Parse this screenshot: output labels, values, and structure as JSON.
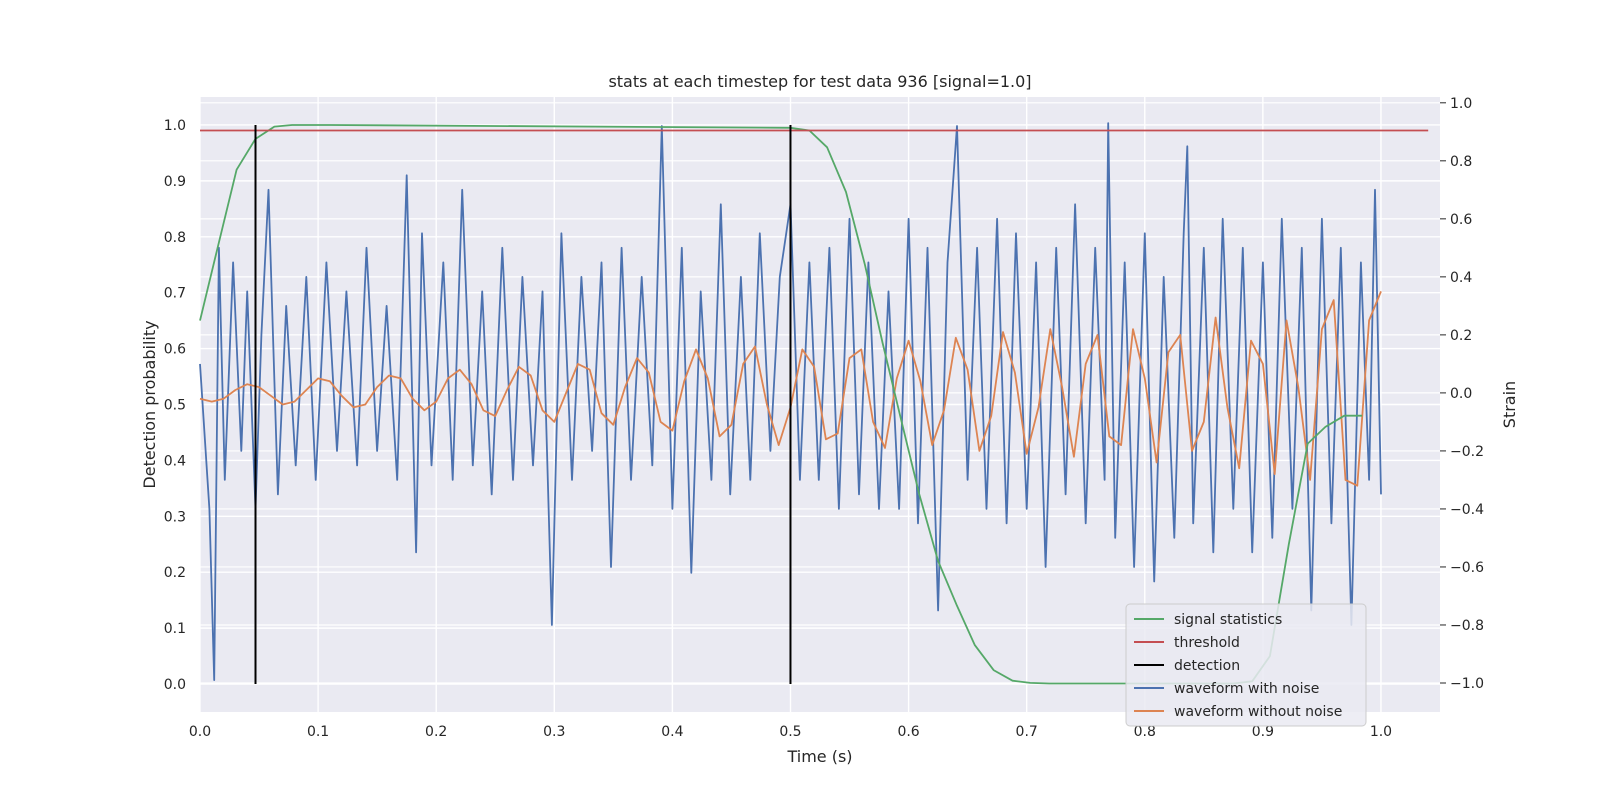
{
  "chart_data": {
    "type": "line",
    "title": "stats at each timestep for test data 936 [signal=1.0]",
    "xlabel": "Time (s)",
    "ylabel": "Detection probability",
    "ylabel_right": "Strain",
    "xlim": [
      0.0,
      1.05
    ],
    "ylim": [
      -0.05,
      1.05
    ],
    "ylim_right": [
      -1.1,
      1.02
    ],
    "xticks": [
      "0.0",
      "0.1",
      "0.2",
      "0.3",
      "0.4",
      "0.5",
      "0.6",
      "0.7",
      "0.8",
      "0.9",
      "1.0"
    ],
    "yticks": [
      "0.0",
      "0.1",
      "0.2",
      "0.3",
      "0.4",
      "0.5",
      "0.6",
      "0.7",
      "0.8",
      "0.9",
      "1.0"
    ],
    "yticks_right": [
      "−1.0",
      "−0.8",
      "−0.6",
      "−0.4",
      "−0.2",
      "0.0",
      "0.2",
      "0.4",
      "0.6",
      "0.8",
      "1.0"
    ],
    "grid": true,
    "legend_position": "lower right",
    "colors": {
      "signal statistics": "#55a868",
      "threshold": "#c44e52",
      "detection": "#000000",
      "waveform with noise": "#4c72b0",
      "waveform without noise": "#dd8452"
    },
    "series": [
      {
        "name": "signal statistics",
        "axis": "left",
        "x": [
          0.0,
          0.016,
          0.031,
          0.047,
          0.063,
          0.078,
          0.094,
          0.11,
          0.5,
          0.516,
          0.531,
          0.547,
          0.563,
          0.578,
          0.594,
          0.609,
          0.625,
          0.641,
          0.656,
          0.672,
          0.688,
          0.703,
          0.719,
          0.8,
          0.875,
          0.891,
          0.906,
          0.922,
          0.938,
          0.953,
          0.969,
          0.984
        ],
        "y": [
          0.65,
          0.79,
          0.92,
          0.975,
          0.997,
          1.0,
          1.0,
          1.0,
          0.995,
          0.99,
          0.96,
          0.88,
          0.75,
          0.61,
          0.47,
          0.34,
          0.22,
          0.14,
          0.07,
          0.025,
          0.006,
          0.002,
          0.001,
          0.001,
          0.001,
          0.005,
          0.05,
          0.25,
          0.43,
          0.46,
          0.48,
          0.48
        ]
      },
      {
        "name": "threshold",
        "axis": "left",
        "x": [
          0.0,
          1.04
        ],
        "y": [
          0.99,
          0.99
        ]
      },
      {
        "name": "detection",
        "axis": "left",
        "x": [
          0.047,
          0.5
        ],
        "y": [
          1.0,
          1.0
        ]
      },
      {
        "name": "waveform with noise",
        "axis": "right",
        "x": [
          0.0,
          0.008,
          0.012,
          0.016,
          0.021,
          0.028,
          0.035,
          0.04,
          0.047,
          0.052,
          0.058,
          0.066,
          0.073,
          0.081,
          0.09,
          0.098,
          0.107,
          0.116,
          0.124,
          0.133,
          0.141,
          0.15,
          0.158,
          0.167,
          0.175,
          0.183,
          0.188,
          0.196,
          0.206,
          0.214,
          0.222,
          0.231,
          0.239,
          0.247,
          0.256,
          0.265,
          0.273,
          0.282,
          0.29,
          0.298,
          0.306,
          0.315,
          0.323,
          0.332,
          0.34,
          0.348,
          0.357,
          0.365,
          0.374,
          0.383,
          0.391,
          0.4,
          0.408,
          0.416,
          0.424,
          0.433,
          0.441,
          0.449,
          0.458,
          0.466,
          0.474,
          0.483,
          0.491,
          0.5,
          0.508,
          0.516,
          0.524,
          0.533,
          0.541,
          0.55,
          0.558,
          0.566,
          0.575,
          0.583,
          0.592,
          0.6,
          0.608,
          0.616,
          0.625,
          0.633,
          0.641,
          0.65,
          0.658,
          0.666,
          0.675,
          0.683,
          0.691,
          0.7,
          0.708,
          0.716,
          0.725,
          0.733,
          0.741,
          0.75,
          0.758,
          0.766,
          0.769,
          0.775,
          0.783,
          0.791,
          0.8,
          0.808,
          0.816,
          0.825,
          0.833,
          0.836,
          0.841,
          0.85,
          0.858,
          0.866,
          0.875,
          0.883,
          0.891,
          0.9,
          0.908,
          0.916,
          0.925,
          0.933,
          0.941,
          0.95,
          0.958,
          0.966,
          0.975,
          0.983,
          0.99,
          0.995,
          1.0
        ],
        "y": [
          0.1,
          -0.4,
          -0.99,
          0.5,
          -0.3,
          0.45,
          -0.2,
          0.35,
          -0.4,
          0.2,
          0.7,
          -0.35,
          0.3,
          -0.25,
          0.4,
          -0.3,
          0.45,
          -0.2,
          0.35,
          -0.25,
          0.5,
          -0.2,
          0.3,
          -0.3,
          0.75,
          -0.55,
          0.55,
          -0.25,
          0.45,
          -0.3,
          0.7,
          -0.25,
          0.35,
          -0.35,
          0.5,
          -0.3,
          0.4,
          -0.25,
          0.35,
          -0.8,
          0.55,
          -0.3,
          0.4,
          -0.2,
          0.45,
          -0.6,
          0.5,
          -0.3,
          0.4,
          -0.25,
          0.92,
          -0.4,
          0.5,
          -0.62,
          0.35,
          -0.3,
          0.65,
          -0.35,
          0.4,
          -0.3,
          0.55,
          -0.2,
          0.4,
          0.65,
          -0.3,
          0.45,
          -0.3,
          0.5,
          -0.4,
          0.6,
          -0.35,
          0.45,
          -0.4,
          0.35,
          -0.4,
          0.6,
          -0.45,
          0.5,
          -0.75,
          0.45,
          0.92,
          -0.3,
          0.5,
          -0.4,
          0.6,
          -0.45,
          0.55,
          -0.4,
          0.45,
          -0.6,
          0.5,
          -0.35,
          0.65,
          -0.45,
          0.5,
          -0.3,
          0.93,
          -0.5,
          0.45,
          -0.6,
          0.55,
          -0.65,
          0.4,
          -0.5,
          0.55,
          0.85,
          -0.45,
          0.5,
          -0.55,
          0.6,
          -0.4,
          0.5,
          -0.55,
          0.45,
          -0.5,
          0.6,
          -0.4,
          0.5,
          -0.75,
          0.6,
          -0.45,
          0.5,
          -0.8,
          0.45,
          -0.3,
          0.7,
          -0.35
        ]
      },
      {
        "name": "waveform without noise",
        "axis": "right",
        "x": [
          0.0,
          0.01,
          0.02,
          0.03,
          0.04,
          0.05,
          0.06,
          0.07,
          0.08,
          0.09,
          0.1,
          0.11,
          0.12,
          0.13,
          0.14,
          0.15,
          0.16,
          0.17,
          0.18,
          0.19,
          0.2,
          0.21,
          0.22,
          0.23,
          0.24,
          0.25,
          0.26,
          0.27,
          0.28,
          0.29,
          0.3,
          0.31,
          0.32,
          0.33,
          0.34,
          0.35,
          0.36,
          0.37,
          0.38,
          0.39,
          0.4,
          0.41,
          0.42,
          0.43,
          0.44,
          0.45,
          0.46,
          0.47,
          0.48,
          0.49,
          0.5,
          0.51,
          0.52,
          0.53,
          0.54,
          0.55,
          0.56,
          0.57,
          0.58,
          0.59,
          0.6,
          0.61,
          0.62,
          0.63,
          0.64,
          0.65,
          0.66,
          0.67,
          0.68,
          0.69,
          0.7,
          0.71,
          0.72,
          0.73,
          0.74,
          0.75,
          0.76,
          0.77,
          0.78,
          0.79,
          0.8,
          0.81,
          0.82,
          0.83,
          0.84,
          0.85,
          0.86,
          0.87,
          0.88,
          0.89,
          0.9,
          0.91,
          0.92,
          0.93,
          0.94,
          0.95,
          0.96,
          0.97,
          0.98,
          0.99,
          1.0
        ],
        "y": [
          -0.02,
          -0.03,
          -0.02,
          0.01,
          0.03,
          0.02,
          -0.01,
          -0.04,
          -0.03,
          0.01,
          0.05,
          0.04,
          -0.01,
          -0.05,
          -0.04,
          0.02,
          0.06,
          0.05,
          -0.02,
          -0.06,
          -0.03,
          0.05,
          0.08,
          0.03,
          -0.06,
          -0.08,
          0.01,
          0.09,
          0.06,
          -0.06,
          -0.1,
          0.0,
          0.1,
          0.08,
          -0.07,
          -0.11,
          0.02,
          0.12,
          0.07,
          -0.1,
          -0.13,
          0.04,
          0.15,
          0.05,
          -0.15,
          -0.11,
          0.1,
          0.16,
          -0.04,
          -0.18,
          -0.05,
          0.15,
          0.09,
          -0.16,
          -0.14,
          0.12,
          0.15,
          -0.1,
          -0.19,
          0.05,
          0.18,
          0.04,
          -0.18,
          -0.06,
          0.19,
          0.08,
          -0.2,
          -0.08,
          0.21,
          0.07,
          -0.21,
          -0.05,
          0.22,
          0.02,
          -0.22,
          0.1,
          0.2,
          -0.15,
          -0.18,
          0.22,
          0.05,
          -0.24,
          0.14,
          0.2,
          -0.2,
          -0.1,
          0.26,
          -0.05,
          -0.26,
          0.18,
          0.1,
          -0.28,
          0.25,
          0.02,
          -0.3,
          0.22,
          0.32,
          -0.3,
          -0.32,
          0.25,
          0.35
        ]
      }
    ]
  }
}
